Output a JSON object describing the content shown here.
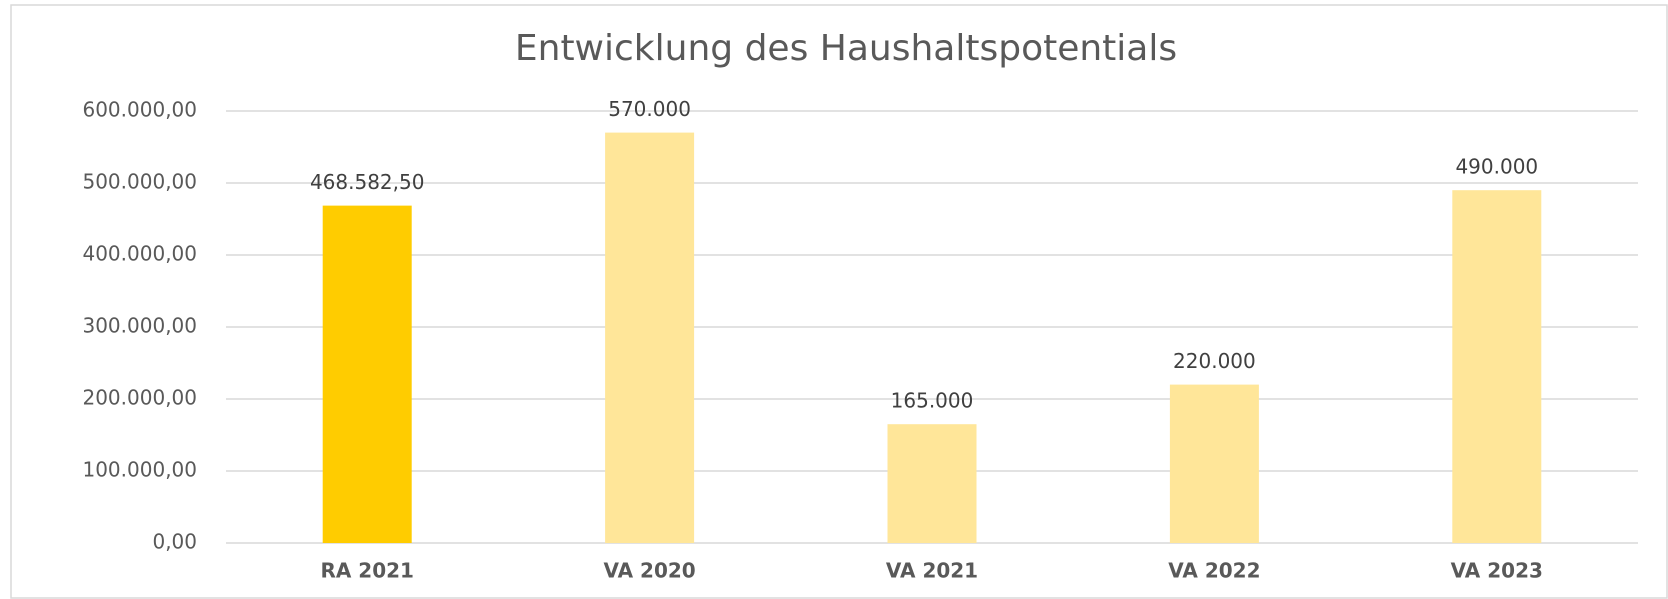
{
  "chart_data": {
    "type": "bar",
    "title": "Entwicklung des Haushaltspotentials",
    "categories": [
      "RA 2021",
      "VA 2020",
      "VA 2021",
      "VA 2022",
      "VA 2023"
    ],
    "values": [
      468582.5,
      570000,
      165000,
      220000,
      490000
    ],
    "value_labels": [
      "468.582,50",
      "570.000",
      "165.000",
      "220.000",
      "490.000"
    ],
    "colors": [
      "#ffcc00",
      "#ffe699",
      "#ffe699",
      "#ffe699",
      "#ffe699"
    ],
    "ylim": [
      0,
      600000
    ],
    "yticks": [
      {
        "value": 0,
        "label": "0,00"
      },
      {
        "value": 100000,
        "label": "100.000,00"
      },
      {
        "value": 200000,
        "label": "200.000,00"
      },
      {
        "value": 300000,
        "label": "300.000,00"
      },
      {
        "value": 400000,
        "label": "400.000,00"
      },
      {
        "value": 500000,
        "label": "500.000,00"
      },
      {
        "value": 600000,
        "label": "600.000,00"
      }
    ],
    "grid": true
  }
}
